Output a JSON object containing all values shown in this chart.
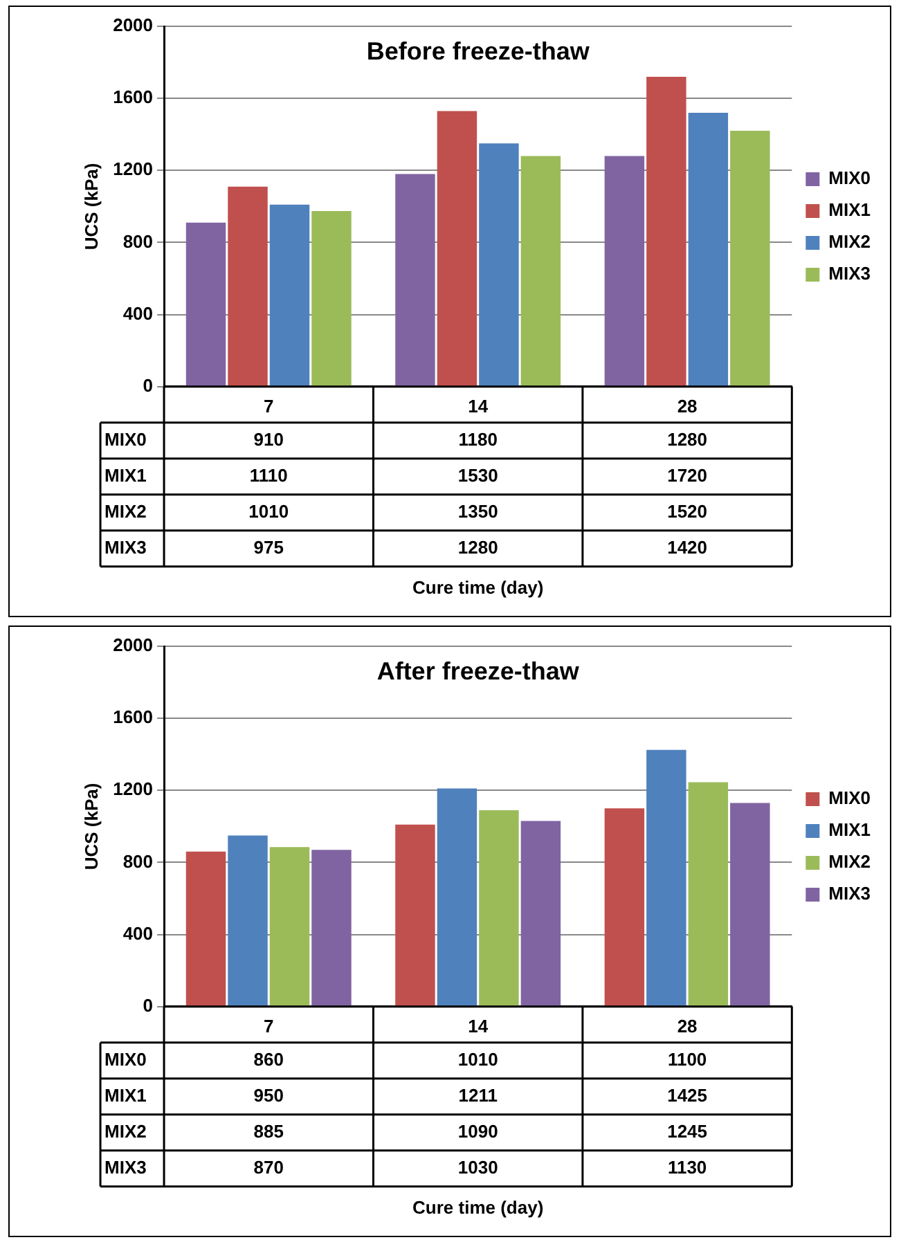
{
  "chart_data": [
    {
      "type": "bar",
      "title": "Before freeze-thaw",
      "categories": [
        "7",
        "14",
        "28"
      ],
      "series": [
        {
          "name": "MIX0",
          "color": "#8064a2",
          "values": [
            910,
            1180,
            1280
          ]
        },
        {
          "name": "MIX1",
          "color": "#c0504d",
          "values": [
            1110,
            1530,
            1720
          ]
        },
        {
          "name": "MIX2",
          "color": "#4f81bd",
          "values": [
            1010,
            1350,
            1520
          ]
        },
        {
          "name": "MIX3",
          "color": "#9bbb59",
          "values": [
            975,
            1280,
            1420
          ]
        }
      ],
      "ylim": [
        0,
        2000
      ],
      "yticks": [
        0,
        400,
        800,
        1200,
        1600,
        2000
      ],
      "ylabel": "UCS (kPa)",
      "xlabel": "Cure time (day)",
      "grid": "y",
      "legend": "right",
      "data_labels": true
    },
    {
      "type": "bar",
      "title": "After freeze-thaw",
      "categories": [
        "7",
        "14",
        "28"
      ],
      "series": [
        {
          "name": "MIX0",
          "color": "#c0504d",
          "values": [
            860,
            1010,
            1100
          ]
        },
        {
          "name": "MIX1",
          "color": "#4f81bd",
          "values": [
            950,
            1211,
            1425
          ]
        },
        {
          "name": "MIX2",
          "color": "#9bbb59",
          "values": [
            885,
            1090,
            1245
          ]
        },
        {
          "name": "MIX3",
          "color": "#8064a2",
          "values": [
            870,
            1030,
            1130
          ]
        }
      ],
      "ylim": [
        0,
        2000
      ],
      "yticks": [
        0,
        400,
        800,
        1200,
        1600,
        2000
      ],
      "ylabel": "UCS (kPa)",
      "xlabel": "Cure time (day)",
      "grid": "y",
      "legend": "right",
      "data_labels": true
    }
  ]
}
